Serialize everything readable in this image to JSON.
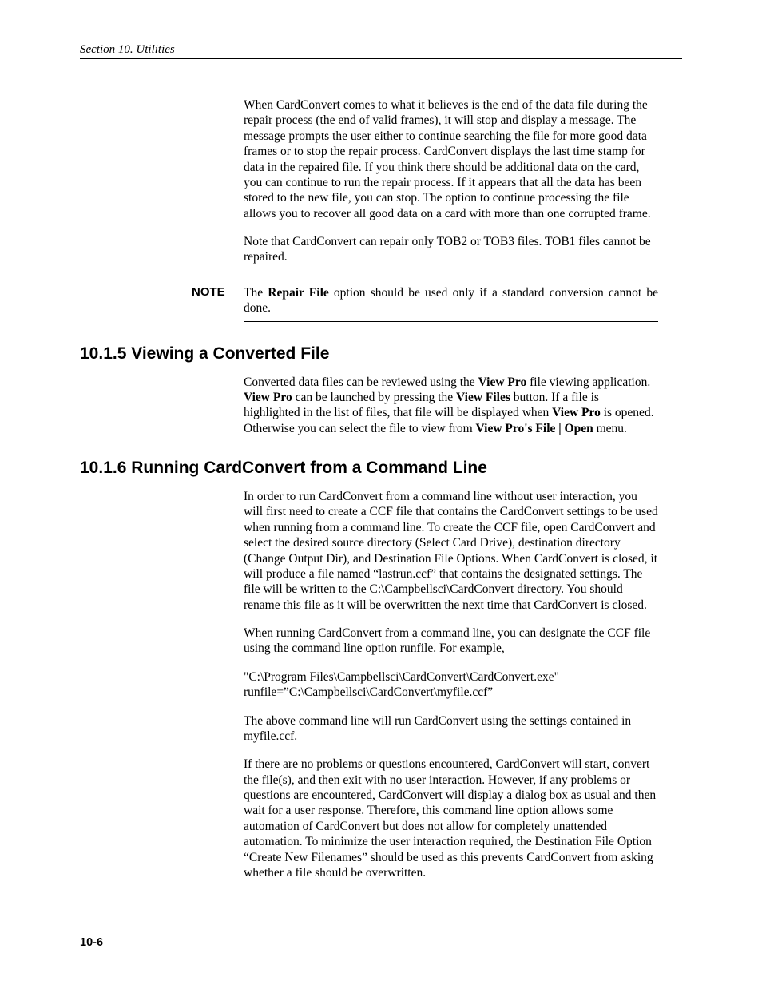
{
  "header": {
    "text": "Section 10.  Utilities"
  },
  "p1": "When CardConvert comes to what it believes is the end of the data file during the repair process (the end of valid frames), it will stop and display a message.  The message prompts the user either to continue searching the file for more good data frames or to stop the repair process.  CardConvert displays the last time stamp for data in the repaired file.  If you think there should be additional data on the card, you can continue to run the repair process.  If it appears that all the data has been stored to the new file, you can stop.  The option to continue processing the file allows you to recover all good data on a card with more than one corrupted frame.",
  "p2": "Note that CardConvert can repair only TOB2 or TOB3 files. TOB1 files cannot be repaired.",
  "note": {
    "label": "NOTE",
    "pre": "The ",
    "bold": "Repair File",
    "post": " option should be used only if a standard conversion cannot be done."
  },
  "s1": {
    "title": "10.1.5  Viewing a Converted File",
    "p1a": "Converted data files can be reviewed using the ",
    "p1b": "View Pro",
    "p1c": " file viewing application.  ",
    "p1d": "View Pro",
    "p1e": " can be launched by pressing the ",
    "p1f": "View Files",
    "p1g": " button.  If a file is highlighted in the list of files, that file will be displayed when ",
    "p1h": "View Pro",
    "p1i": " is opened.  Otherwise you can select the file to view from ",
    "p1j": "View Pro's File | Open",
    "p1k": " menu."
  },
  "s2": {
    "title": "10.1.6  Running CardConvert from a Command Line",
    "p1": "In order to run CardConvert from a command line without user interaction, you will first need to create a CCF file that contains the CardConvert settings to be used when running from a command line.  To create the CCF file, open CardConvert and select the desired source directory (Select Card Drive), destination directory (Change Output Dir), and Destination File Options. When CardConvert is closed, it will produce a file named “lastrun.ccf” that contains the designated settings. The file will be written to the C:\\Campbellsci\\CardConvert directory. You should rename this file as it will be overwritten the next time that CardConvert is closed.",
    "p2": "When running CardConvert from a command line, you can designate the CCF file using the command line option runfile.  For example,",
    "p3": "\"C:\\Program Files\\Campbellsci\\CardConvert\\CardConvert.exe\" runfile=”C:\\Campbellsci\\CardConvert\\myfile.ccf”",
    "p4": "The above command line will run CardConvert using the settings contained in myfile.ccf.",
    "p5": "If there are no problems or questions encountered, CardConvert will start, convert the file(s), and then exit with no user interaction. However, if any problems or questions are encountered, CardConvert will display a dialog box as usual and then wait for a user response. Therefore, this command line option allows some automation of CardConvert but does not allow for completely unattended automation. To minimize the user interaction required, the Destination File Option “Create New Filenames” should be used as this prevents CardConvert from asking whether a file should be overwritten."
  },
  "footer": {
    "page": "10-6"
  }
}
